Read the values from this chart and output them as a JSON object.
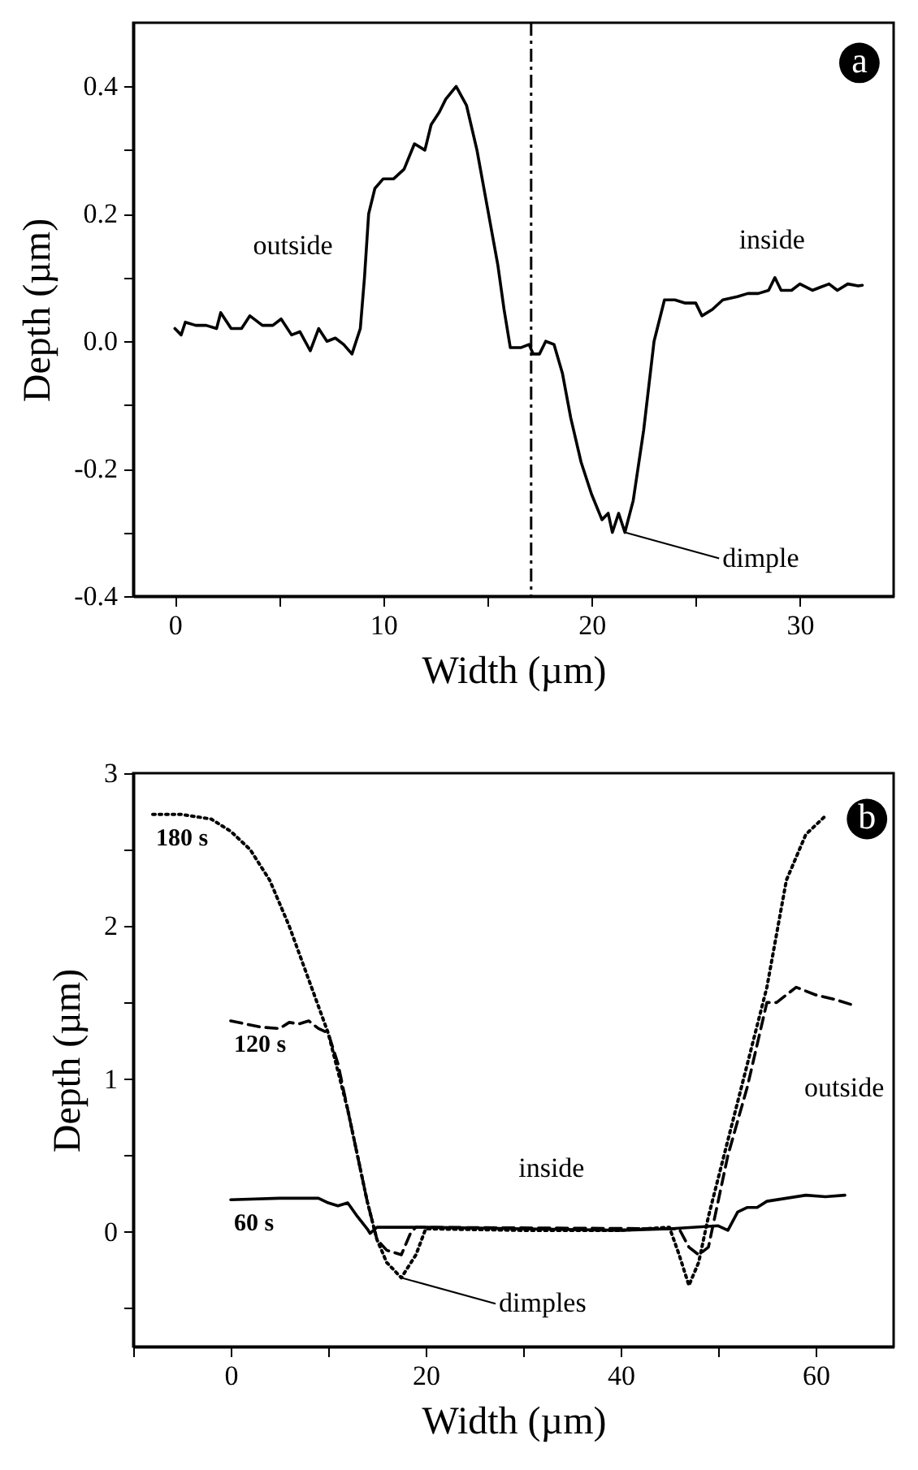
{
  "chart_data": [
    {
      "type": "line",
      "xlabel": "Width (µm)",
      "ylabel": "Depth (µm)",
      "xlim": [
        -2,
        34.5
      ],
      "ylim": [
        -0.4,
        0.5
      ],
      "xticks": [
        0,
        {
          "value": 5,
          "label": null
        },
        10,
        {
          "value": 15,
          "label": null
        },
        20,
        {
          "value": 25,
          "label": null
        },
        30
      ],
      "yticks": [
        {
          "value": -0.4,
          "label": "-0.4"
        },
        {
          "value": -0.3,
          "label": null
        },
        {
          "value": -0.2,
          "label": "-0.2"
        },
        {
          "value": -0.1,
          "label": null
        },
        {
          "value": 0,
          "label": "0.0"
        },
        {
          "value": 0.1,
          "label": null
        },
        {
          "value": 0.2,
          "label": "0.2"
        },
        {
          "value": 0.3,
          "label": null
        },
        {
          "value": 0.4,
          "label": "0.4"
        }
      ],
      "x": [
        0,
        0.3,
        0.5,
        1,
        1.5,
        2,
        2.2,
        2.7,
        3.2,
        3.6,
        4.2,
        4.7,
        5.1,
        5.6,
        6,
        6.5,
        6.9,
        7.3,
        7.7,
        8.1,
        8.5,
        8.9,
        9.1,
        9.3,
        9.6,
        10,
        10.5,
        11,
        11.5,
        12,
        12.3,
        12.7,
        13,
        13.5,
        14,
        14.5,
        15,
        15.5,
        15.8,
        16.1,
        16.6,
        17,
        17.2,
        17.5,
        17.8,
        18.2,
        18.6,
        19,
        19.5,
        20,
        20.5,
        20.8,
        21,
        21.3,
        21.6,
        22,
        22.5,
        23,
        23.5,
        24,
        24.5,
        25,
        25.3,
        25.8,
        26.3,
        27,
        27.5,
        28,
        28.5,
        28.8,
        29.1,
        29.6,
        30,
        30.6,
        31,
        31.4,
        31.8,
        32.3,
        32.8,
        33
      ],
      "series": [
        {
          "color": "#000000",
          "line_style": "solid",
          "values": [
            0.02,
            0.01,
            0.03,
            0.025,
            0.025,
            0.02,
            0.045,
            0.02,
            0.02,
            0.04,
            0.025,
            0.025,
            0.035,
            0.01,
            0.015,
            -0.015,
            0.02,
            0,
            0.005,
            -0.005,
            -0.02,
            0.02,
            0.1,
            0.2,
            0.24,
            0.255,
            0.255,
            0.27,
            0.31,
            0.3,
            0.34,
            0.36,
            0.38,
            0.4,
            0.37,
            0.3,
            0.21,
            0.12,
            0.05,
            -0.01,
            -0.01,
            -0.005,
            -0.02,
            -0.02,
            0,
            -0.005,
            -0.05,
            -0.12,
            -0.19,
            -0.24,
            -0.28,
            -0.27,
            -0.3,
            -0.27,
            -0.3,
            -0.25,
            -0.14,
            0,
            0.065,
            0.065,
            0.06,
            0.06,
            0.04,
            0.05,
            0.065,
            0.07,
            0.075,
            0.075,
            0.08,
            0.1,
            0.08,
            0.08,
            0.09,
            0.08,
            0.085,
            0.09,
            0.08,
            0.09,
            0.087,
            0.088
          ]
        }
      ],
      "ref_lines": [
        {
          "axis": "x",
          "value": 17.1,
          "line_style": "dashed",
          "color": "#000000"
        }
      ],
      "annotations": [
        "outside",
        "inside",
        {
          "text": "dimple",
          "x": 21.6,
          "y": -0.3
        },
        "a"
      ]
    },
    {
      "type": "line",
      "xlabel": "Width (µm)",
      "ylabel": "Depth (µm)",
      "xlim": [
        -10,
        68
      ],
      "ylim": [
        -0.75,
        3
      ],
      "xticks": [
        {
          "value": -10,
          "label": null
        },
        0,
        {
          "value": 10,
          "label": null
        },
        20,
        {
          "value": 30,
          "label": null
        },
        40,
        {
          "value": 50,
          "label": null
        },
        60
      ],
      "yticks": [
        {
          "value": -0.5,
          "label": null
        },
        0,
        {
          "value": 0.5,
          "label": null
        },
        1,
        {
          "value": 1.5,
          "label": null
        },
        2,
        {
          "value": 2.5,
          "label": null
        },
        3
      ],
      "series": [
        {
          "name": "180 s",
          "color": "#000000",
          "line_style": "dotted",
          "x": [
            -8,
            -5,
            -2,
            0,
            2,
            4,
            6,
            8,
            10,
            12,
            14,
            15,
            16,
            17.5,
            19,
            20,
            30,
            40,
            45,
            46,
            47,
            48,
            49,
            51,
            53,
            55,
            57,
            59,
            61
          ],
          "values": [
            2.73,
            2.73,
            2.7,
            2.62,
            2.5,
            2.3,
            2,
            1.65,
            1.3,
            0.8,
            0.2,
            -0.05,
            -0.2,
            -0.3,
            -0.15,
            0.02,
            0.01,
            0.01,
            0.03,
            -0.15,
            -0.35,
            -0.2,
            0.1,
            0.6,
            1.1,
            1.6,
            2.3,
            2.6,
            2.72
          ]
        },
        {
          "name": "120 s",
          "color": "#000000",
          "line_style": "dashed",
          "x": [
            0,
            3,
            5,
            6,
            7,
            8,
            9,
            10,
            11,
            12,
            13,
            14,
            15,
            16,
            17.5,
            18.5,
            19,
            20,
            46,
            47,
            48,
            49,
            50,
            51,
            53,
            55,
            56,
            57,
            58,
            60,
            62,
            64
          ],
          "values": [
            1.38,
            1.34,
            1.33,
            1.37,
            1.36,
            1.38,
            1.33,
            1.3,
            1.1,
            0.8,
            0.5,
            0.2,
            -0.05,
            -0.12,
            -0.15,
            0,
            0.03,
            0.03,
            0.02,
            -0.1,
            -0.15,
            -0.1,
            0.2,
            0.5,
            0.95,
            1.5,
            1.5,
            1.55,
            1.6,
            1.55,
            1.52,
            1.48
          ]
        },
        {
          "name": "60 s",
          "color": "#000000",
          "line_style": "solid",
          "x": [
            0,
            5,
            9,
            10,
            11,
            12,
            13,
            14,
            14.3,
            15,
            20,
            30,
            40,
            45,
            50,
            51,
            52,
            53,
            54,
            55,
            57,
            59,
            61,
            63
          ],
          "values": [
            0.21,
            0.22,
            0.22,
            0.19,
            0.17,
            0.19,
            0.1,
            0.02,
            -0.01,
            0.03,
            0.03,
            0.02,
            0.01,
            0.02,
            0.04,
            0.01,
            0.13,
            0.16,
            0.16,
            0.2,
            0.22,
            0.24,
            0.23,
            0.24
          ]
        }
      ],
      "annotations": [
        "inside",
        "outside",
        {
          "text": "dimples",
          "x": 17.5,
          "y": -0.3
        },
        "b"
      ]
    }
  ]
}
